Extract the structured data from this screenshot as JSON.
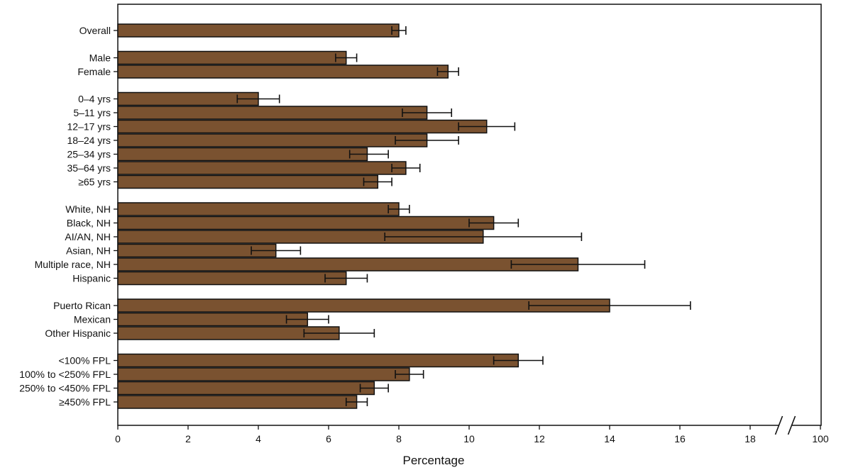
{
  "chart_data": {
    "type": "bar",
    "orientation": "horizontal",
    "title": "",
    "xlabel": "Percentage",
    "ylabel": "",
    "xlim": [
      0,
      20
    ],
    "axis_break": {
      "before": 18,
      "label_after_break": "100"
    },
    "x_ticks": [
      "0",
      "2",
      "4",
      "6",
      "8",
      "10",
      "12",
      "14",
      "16",
      "18",
      "100"
    ],
    "grid": false,
    "legend": "none",
    "bar_color": "#7a5230",
    "groups": [
      {
        "categories": [
          {
            "label": "Overall",
            "value": 8.0,
            "lower": 7.8,
            "upper": 8.2
          }
        ]
      },
      {
        "categories": [
          {
            "label": "Male",
            "value": 6.5,
            "lower": 6.2,
            "upper": 6.8
          },
          {
            "label": "Female",
            "value": 9.4,
            "lower": 9.1,
            "upper": 9.7
          }
        ]
      },
      {
        "categories": [
          {
            "label": "0–4 yrs",
            "value": 4.0,
            "lower": 3.4,
            "upper": 4.6
          },
          {
            "label": "5–11 yrs",
            "value": 8.8,
            "lower": 8.1,
            "upper": 9.5
          },
          {
            "label": "12–17 yrs",
            "value": 10.5,
            "lower": 9.7,
            "upper": 11.3
          },
          {
            "label": "18–24 yrs",
            "value": 8.8,
            "lower": 7.9,
            "upper": 9.7
          },
          {
            "label": "25–34 yrs",
            "value": 7.1,
            "lower": 6.6,
            "upper": 7.7
          },
          {
            "label": "35–64 yrs",
            "value": 8.2,
            "lower": 7.8,
            "upper": 8.6
          },
          {
            "label": "≥65 yrs",
            "value": 7.4,
            "lower": 7.0,
            "upper": 7.8
          }
        ]
      },
      {
        "categories": [
          {
            "label": "White, NH",
            "value": 8.0,
            "lower": 7.7,
            "upper": 8.3
          },
          {
            "label": "Black, NH",
            "value": 10.7,
            "lower": 10.0,
            "upper": 11.4
          },
          {
            "label": "AI/AN, NH",
            "value": 10.4,
            "lower": 7.6,
            "upper": 13.2
          },
          {
            "label": "Asian, NH",
            "value": 4.5,
            "lower": 3.8,
            "upper": 5.2
          },
          {
            "label": "Multiple race, NH",
            "value": 13.1,
            "lower": 11.2,
            "upper": 15.0
          },
          {
            "label": "Hispanic",
            "value": 6.5,
            "lower": 5.9,
            "upper": 7.1
          }
        ]
      },
      {
        "categories": [
          {
            "label": "Puerto Rican",
            "value": 14.0,
            "lower": 11.7,
            "upper": 16.3
          },
          {
            "label": "Mexican",
            "value": 5.4,
            "lower": 4.8,
            "upper": 6.0
          },
          {
            "label": "Other Hispanic",
            "value": 6.3,
            "lower": 5.3,
            "upper": 7.3
          }
        ]
      },
      {
        "categories": [
          {
            "label": "<100% FPL",
            "value": 11.4,
            "lower": 10.7,
            "upper": 12.1
          },
          {
            "label": "100% to <250% FPL",
            "value": 8.3,
            "lower": 7.9,
            "upper": 8.7
          },
          {
            "label": "250% to <450% FPL",
            "value": 7.3,
            "lower": 6.9,
            "upper": 7.7
          },
          {
            "label": "≥450% FPL",
            "value": 6.8,
            "lower": 6.5,
            "upper": 7.1
          }
        ]
      }
    ]
  }
}
